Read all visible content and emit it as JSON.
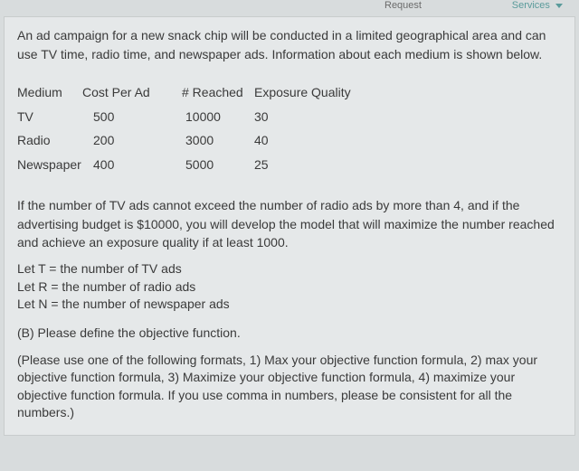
{
  "topbar": {
    "request": "Request",
    "services": "Services"
  },
  "intro": "An ad campaign for a new snack chip will be conducted in a limited geographical area and can use TV time, radio time, and newspaper ads. Information about each medium is shown below.",
  "table": {
    "headers": {
      "medium": "Medium",
      "cost": "Cost Per Ad",
      "reached": "# Reached",
      "quality": "Exposure Quality"
    },
    "rows": [
      {
        "medium": "TV",
        "cost": "500",
        "reached": "10000",
        "quality": "30"
      },
      {
        "medium": "Radio",
        "cost": "200",
        "reached": "3000",
        "quality": "40"
      },
      {
        "medium": "Newspaper",
        "cost": "400",
        "reached": "5000",
        "quality": "25"
      }
    ]
  },
  "constraint_paragraph": "If the number of TV ads cannot exceed the number of radio ads by more than 4, and if the advertising budget is $10000, you will develop the model that will maximize the number reached and achieve an exposure quality if at least 1000.",
  "variables": {
    "t": "Let T = the number of TV ads",
    "r": "Let R = the number of radio ads",
    "n": "Let N = the number of newspaper ads"
  },
  "question": "(B) Please define the objective function.",
  "note": "(Please use one of the following formats, 1) Max your objective function formula, 2) max your objective function formula, 3) Maximize your objective function formula, 4) maximize your objective function formula.  If you use comma in numbers, please be consistent for all the numbers.)"
}
